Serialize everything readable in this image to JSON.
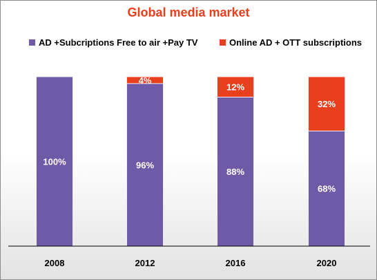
{
  "chart_data": {
    "type": "bar",
    "stacked": true,
    "title": "Global media market",
    "categories": [
      "2008",
      "2012",
      "2016",
      "2020"
    ],
    "series": [
      {
        "name": "AD +Subcriptions Free to air +Pay TV",
        "values": [
          100,
          96,
          88,
          68
        ],
        "labels": [
          "100%",
          "96%",
          "88%",
          "68%"
        ],
        "color": "#6f5aa8"
      },
      {
        "name": "Online AD + OTT subscriptions",
        "values": [
          0,
          4,
          12,
          32
        ],
        "labels": [
          "",
          "4%",
          "12%",
          "32%"
        ],
        "color": "#e8401c"
      }
    ],
    "ylim": [
      0,
      100
    ],
    "legend_position": "top",
    "grid": false
  },
  "colors": {
    "title": "#e8401c",
    "axis": "#000000"
  }
}
